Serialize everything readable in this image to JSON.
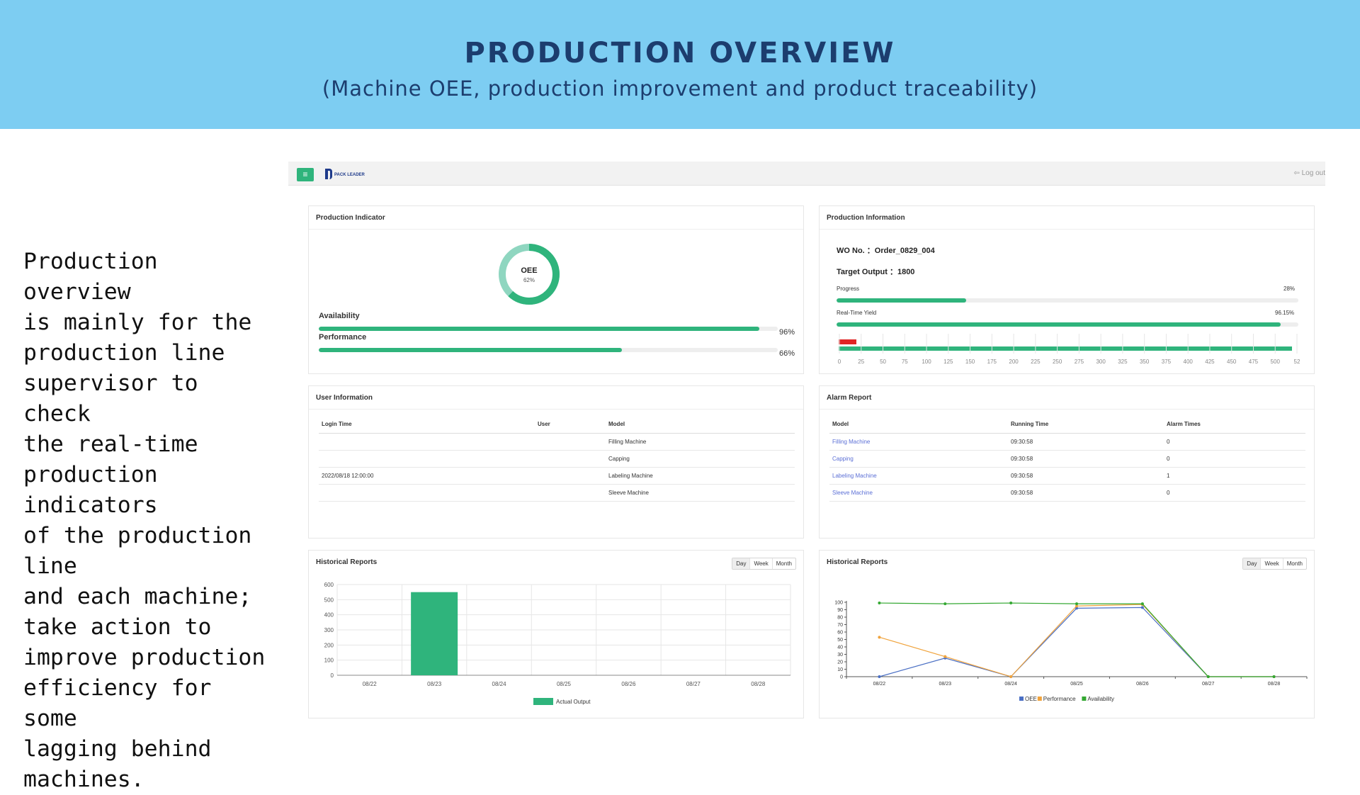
{
  "banner": {
    "title": "PRODUCTION OVERVIEW",
    "subtitle": "(Machine OEE, production improvement and product traceability)"
  },
  "description": "Production overview\nis mainly for the\nproduction line\nsupervisor to check\nthe real-time\nproduction indicators\nof the production line\nand each machine;\ntake action to\nimprove production\nefficiency for some\nlagging behind\nmachines.",
  "app": {
    "menu_icon": "hamburger-icon",
    "logo_text": "PACK LEADER",
    "logout_label": "Log out",
    "logout_icon": "logout-icon",
    "accent": "#2fb47c"
  },
  "production_indicator": {
    "title": "Production Indicator",
    "oee_label": "OEE",
    "oee_value": "62%",
    "oee_fraction": 0.62,
    "availability_label": "Availability",
    "availability_pct": "96%",
    "availability_fraction": 0.96,
    "performance_label": "Performance",
    "performance_pct": "66%",
    "performance_fraction": 0.66
  },
  "production_information": {
    "title": "Production Information",
    "wo_line": "WO No. ：Order_0829_004",
    "target_line": "Target Output ：1800",
    "progress_label": "Progress",
    "progress_pct": "28%",
    "progress_fraction": 0.28,
    "yield_label": "Real-Time Yield",
    "yield_pct": "96.15%",
    "yield_fraction": 0.9615,
    "ruler_ticks": [
      "0",
      "25",
      "50",
      "75",
      "100",
      "125",
      "150",
      "175",
      "200",
      "225",
      "250",
      "275",
      "300",
      "325",
      "350",
      "375",
      "400",
      "425",
      "450",
      "475",
      "500",
      "52"
    ]
  },
  "user_information": {
    "title": "User Information",
    "columns": [
      "Login Time",
      "User",
      "Model"
    ],
    "rows": [
      [
        "",
        "",
        "Filling Machine"
      ],
      [
        "",
        "",
        "Capping"
      ],
      [
        "2022/08/18 12:00:00",
        "",
        "Labeling Machine"
      ],
      [
        "",
        "",
        "Sleeve Machine"
      ]
    ]
  },
  "alarm_report": {
    "title": "Alarm Report",
    "columns": [
      "Model",
      "Running Time",
      "Alarm Times"
    ],
    "rows": [
      [
        "Filling Machine",
        "09:30:58",
        "0"
      ],
      [
        "Capping",
        "09:30:58",
        "0"
      ],
      [
        "Labeling Machine",
        "09:30:58",
        "1"
      ],
      [
        "Sleeve Machine",
        "09:30:58",
        "0"
      ]
    ]
  },
  "historical_left": {
    "title": "Historical Reports",
    "buttons": [
      "Day",
      "Week",
      "Month"
    ],
    "active": "Day"
  },
  "historical_right": {
    "title": "Historical Reports",
    "buttons": [
      "Day",
      "Week",
      "Month"
    ],
    "active": "Day"
  },
  "chart_data": [
    {
      "type": "bar",
      "categories": [
        "08/22",
        "08/23",
        "08/24",
        "08/25",
        "08/26",
        "08/27",
        "08/28"
      ],
      "series": [
        {
          "name": "Actual Output",
          "values": [
            0,
            550,
            0,
            0,
            0,
            0,
            0
          ],
          "color": "#2fb47c"
        }
      ],
      "ylim": [
        0,
        600
      ],
      "yticks": [
        0,
        100,
        200,
        300,
        400,
        500,
        600
      ],
      "grid": true,
      "legend": "bottom"
    },
    {
      "type": "line",
      "categories": [
        "08/22",
        "08/23",
        "08/24",
        "08/25",
        "08/26",
        "08/27",
        "08/28"
      ],
      "series": [
        {
          "name": "OEE",
          "values": [
            0,
            25,
            0,
            92,
            93,
            0,
            0
          ],
          "color": "#4a6fc4"
        },
        {
          "name": "Performance",
          "values": [
            53,
            27,
            0,
            95,
            97,
            0,
            0
          ],
          "color": "#f0a33c"
        },
        {
          "name": "Availability",
          "values": [
            99,
            98,
            99,
            98,
            98,
            0,
            0
          ],
          "color": "#34a832"
        }
      ],
      "ylim": [
        0,
        100
      ],
      "yticks": [
        0,
        10,
        20,
        30,
        40,
        50,
        60,
        70,
        80,
        90,
        100
      ],
      "grid": false,
      "legend": "bottom"
    }
  ]
}
